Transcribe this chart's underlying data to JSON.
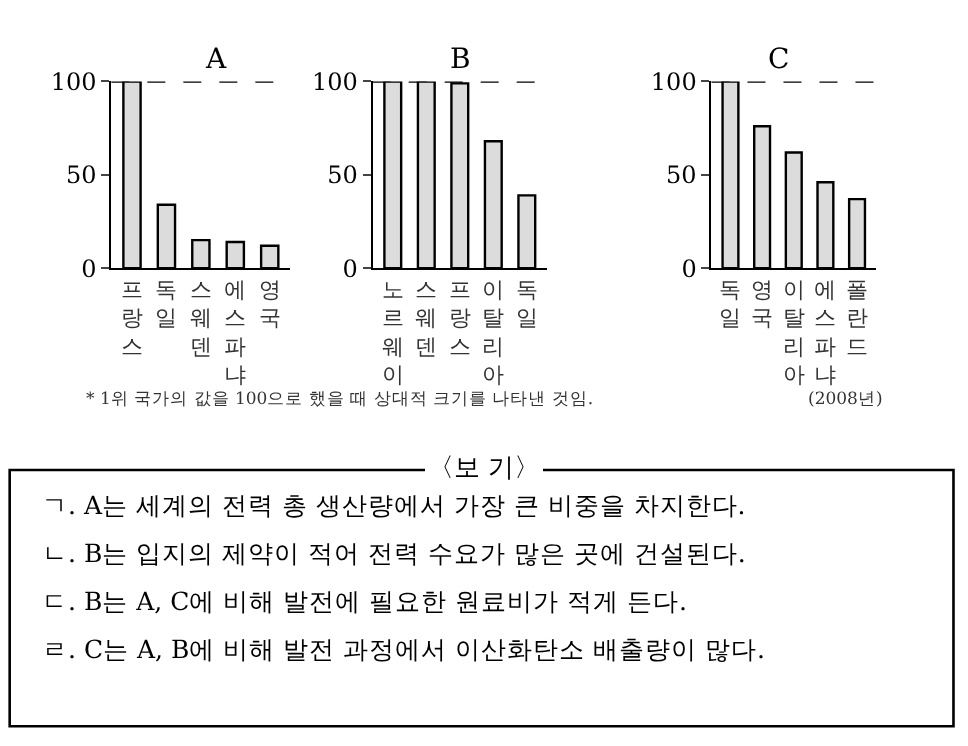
{
  "chart_data": [
    {
      "type": "bar",
      "title": "A",
      "categories": [
        "프랑스",
        "독일",
        "스웨덴",
        "에스파냐",
        "영국"
      ],
      "values": [
        100,
        34,
        15,
        14,
        12
      ],
      "color": "#dcdcdc",
      "ylim": [
        0,
        100
      ],
      "yticks": [
        0,
        50,
        100
      ],
      "grid": false,
      "ref_lines": [
        {
          "axis": "y",
          "value": 100,
          "line_style": "dashed"
        }
      ],
      "annotations": [
        "* 1위 국가의 값을 100으로 했을 때 상대적 크기를 나타낸 것임."
      ]
    },
    {
      "type": "bar",
      "title": "B",
      "categories": [
        "노르웨이",
        "스웨덴",
        "프랑스",
        "이탈리아",
        "독일"
      ],
      "values": [
        100,
        100,
        99,
        68,
        39
      ],
      "color": "#dcdcdc",
      "ylim": [
        0,
        100
      ],
      "yticks": [
        0,
        50,
        100
      ],
      "grid": false,
      "ref_lines": [
        {
          "axis": "y",
          "value": 100,
          "line_style": "dashed"
        }
      ]
    },
    {
      "type": "bar",
      "title": "C",
      "categories": [
        "독일",
        "영국",
        "이탈리아",
        "에스파냐",
        "폴란드"
      ],
      "values": [
        100,
        76,
        62,
        46,
        37
      ],
      "color": "#dcdcdc",
      "ylim": [
        0,
        100
      ],
      "yticks": [
        0,
        50,
        100
      ],
      "grid": false,
      "ref_lines": [
        {
          "axis": "y",
          "value": 100,
          "line_style": "dashed"
        }
      ],
      "annotations": [
        "(2008년)"
      ]
    },
    {
      "type": "other",
      "title": "〈보 기〉",
      "annotations": [
        "ㄱ. A는 세계의 전력 총 생산량에서 가장 큰 비중을 차지한다.",
        "ㄴ. B는 입지의 제약이 적어 전력 수요가 많은 곳에 건설된다.",
        "ㄷ. B는 A, C에 비해 발전에 필요한 원료비가 적게 든다.",
        "ㄹ. C는 A, B에 비해 발전 과정에서 이산화탄소 배출량이 많다."
      ]
    }
  ]
}
